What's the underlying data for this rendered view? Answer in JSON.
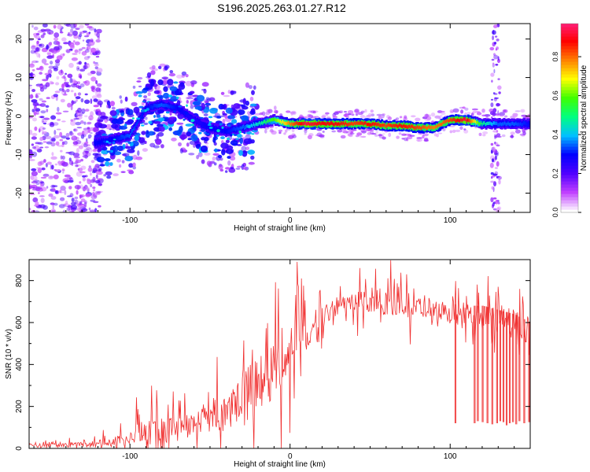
{
  "page_title": "S196.2025.263.01.27.R12",
  "colors": {
    "spectrum_ridge": "#e8e800",
    "snr_line": "#f03030",
    "axis": "#000000"
  },
  "chart_data": [
    {
      "type": "heatmap",
      "title": "S196.2025.263.01.27.R12",
      "xlabel": "Height of straight line (km)",
      "ylabel": "Frequency (Hz)",
      "xlim": [
        -163,
        150
      ],
      "ylim": [
        -25,
        24
      ],
      "xticks": [
        -100,
        0,
        100
      ],
      "yticks": [
        -20,
        -10,
        0,
        10,
        20
      ],
      "colorbar": {
        "label": "Normalized spectral amplitude",
        "range": [
          0,
          0.97
        ],
        "ticks": [
          0.0,
          0.2,
          0.4,
          0.6,
          0.8
        ],
        "tick_labels": [
          "0.0",
          "0.2",
          "0.4",
          "0.6",
          "0.8"
        ],
        "colormap": [
          "#ffffff",
          "#c040ff",
          "#5000ff",
          "#0000ff",
          "#00c0ff",
          "#00ff80",
          "#40ff00",
          "#ffff00",
          "#ff8000",
          "#ff0000",
          "#ff2080"
        ]
      },
      "ridge": {
        "x": [
          -120,
          -110,
          -100,
          -90,
          -80,
          -70,
          -60,
          -50,
          -40,
          -30,
          -20,
          -10,
          0,
          10,
          20,
          30,
          40,
          50,
          60,
          70,
          80,
          90,
          100,
          110,
          120,
          130,
          140,
          150
        ],
        "freq": [
          -7,
          -6,
          -5,
          2,
          3,
          2,
          -1,
          -3,
          -4,
          -3,
          -2,
          -1,
          -2,
          -2,
          -2,
          -2,
          -2,
          -2,
          -2.5,
          -2.5,
          -3,
          -3,
          -1,
          -1,
          -2,
          -2,
          -2,
          -2
        ],
        "amplitude": [
          0.3,
          0.3,
          0.35,
          0.3,
          0.35,
          0.3,
          0.25,
          0.3,
          0.3,
          0.35,
          0.45,
          0.6,
          0.8,
          0.95,
          0.9,
          0.9,
          0.85,
          0.9,
          0.85,
          0.9,
          0.85,
          0.8,
          0.85,
          0.95,
          0.5,
          0.35,
          0.35,
          0.3
        ]
      }
    },
    {
      "type": "line",
      "xlabel": "Height of straight line (km)",
      "ylabel": "SNR (10 * v/v)",
      "xlim": [
        -163,
        150
      ],
      "ylim": [
        0,
        900
      ],
      "xticks": [
        -100,
        0,
        100
      ],
      "yticks": [
        0,
        200,
        400,
        600,
        800
      ],
      "series": [
        {
          "name": "SNR",
          "x": [
            -163,
            -150,
            -140,
            -130,
            -120,
            -110,
            -100,
            -90,
            -80,
            -70,
            -60,
            -50,
            -40,
            -30,
            -20,
            -10,
            0,
            5,
            10,
            20,
            30,
            40,
            50,
            60,
            70,
            80,
            90,
            100,
            110,
            120,
            130,
            140,
            150
          ],
          "base": [
            15,
            15,
            15,
            18,
            20,
            30,
            60,
            75,
            85,
            95,
            100,
            130,
            180,
            260,
            320,
            360,
            420,
            560,
            520,
            620,
            690,
            700,
            690,
            690,
            690,
            680,
            670,
            650,
            640,
            640,
            620,
            600,
            560
          ],
          "spike": [
            20,
            20,
            20,
            25,
            40,
            60,
            90,
            140,
            150,
            140,
            150,
            170,
            200,
            250,
            300,
            350,
            300,
            330,
            150,
            120,
            110,
            120,
            120,
            120,
            120,
            120,
            120,
            120,
            130,
            130,
            130,
            150,
            150
          ]
        }
      ],
      "dropouts": {
        "x": [
          103,
          115,
          117,
          120,
          123,
          126,
          129,
          131,
          133,
          135,
          137,
          139,
          141,
          143,
          146,
          149
        ],
        "value": [
          120,
          120,
          130,
          125,
          120,
          115,
          120,
          130,
          125,
          110,
          120,
          125,
          115,
          130,
          120,
          125
        ]
      }
    }
  ]
}
